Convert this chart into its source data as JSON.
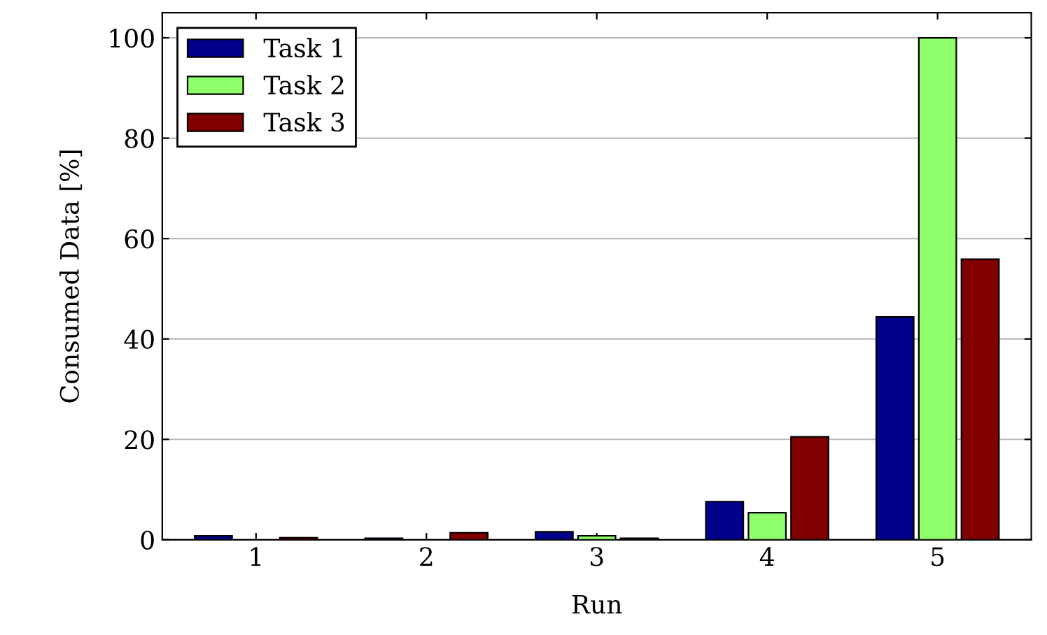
{
  "chart_data": {
    "type": "bar",
    "xlabel": "Run",
    "ylabel": "Consumed Data [%]",
    "categories": [
      "1",
      "2",
      "3",
      "4",
      "5"
    ],
    "series": [
      {
        "name": "Task 1",
        "color": "#00008b",
        "values": [
          0.8,
          0.3,
          1.6,
          7.6,
          44.4
        ]
      },
      {
        "name": "Task 2",
        "color": "#90ff6c",
        "values": [
          null,
          null,
          0.8,
          5.4,
          100
        ]
      },
      {
        "name": "Task 3",
        "color": "#800000",
        "values": [
          0.4,
          1.4,
          0.3,
          20.5,
          55.9
        ]
      }
    ],
    "ylim": [
      0,
      105
    ],
    "yticks": [
      0,
      20,
      40,
      60,
      80,
      100
    ],
    "grid": "y",
    "legend": "top left"
  }
}
